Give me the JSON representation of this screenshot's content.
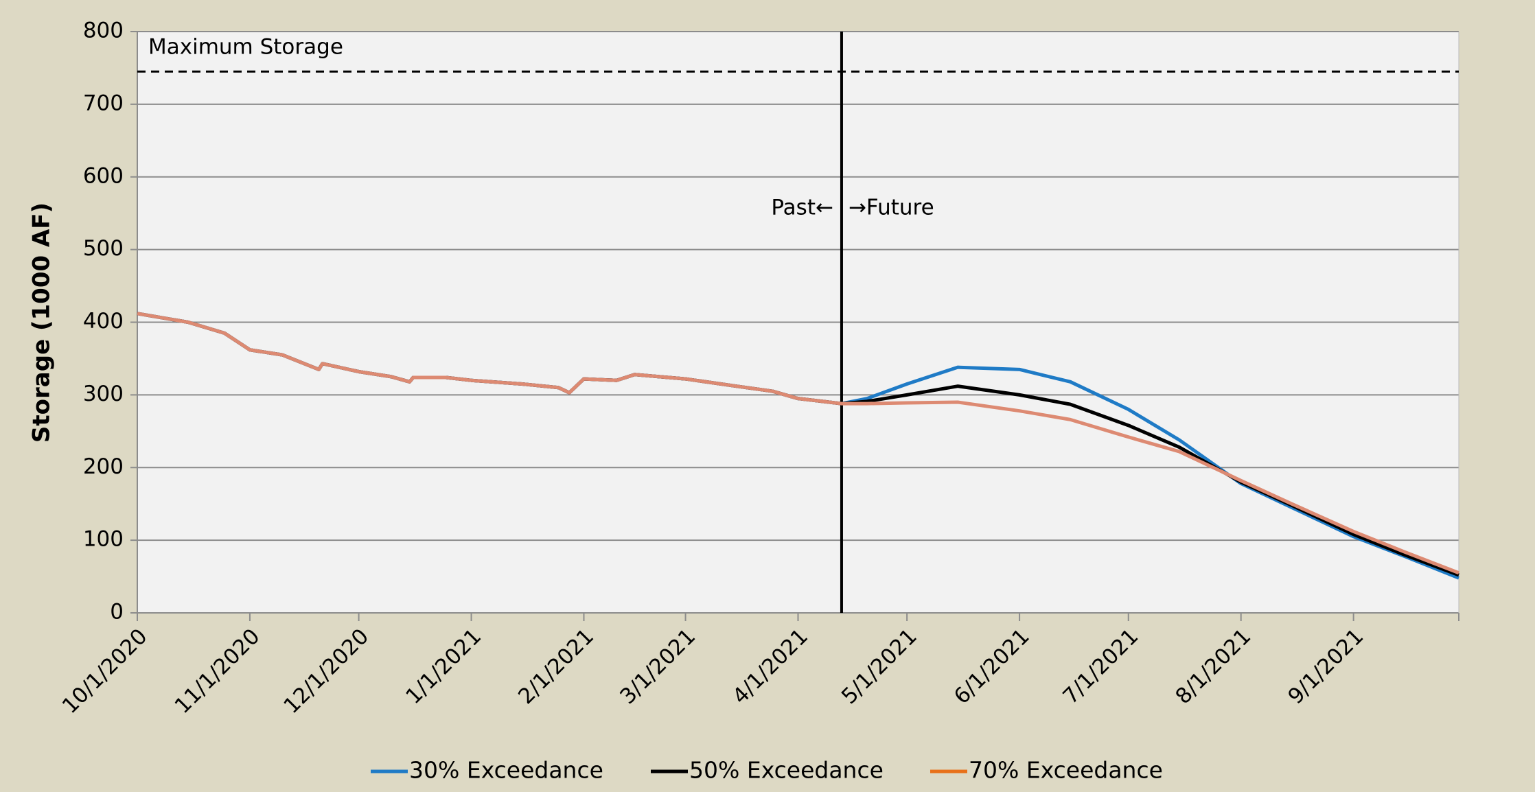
{
  "chart_data": {
    "type": "line",
    "y_label": "Storage (1000 AF)",
    "x": [
      "10/1/2020",
      "10/15/2020",
      "10/25/2020",
      "11/1/2020",
      "11/10/2020",
      "11/20/2020",
      "11/21/2020",
      "12/1/2020",
      "12/10/2020",
      "12/15/2020",
      "12/16/2020",
      "12/25/2020",
      "1/1/2021",
      "1/15/2021",
      "1/25/2021",
      "1/28/2021",
      "2/1/2021",
      "2/10/2021",
      "2/15/2021",
      "3/1/2021",
      "3/15/2021",
      "3/25/2021",
      "4/1/2021",
      "4/13/2021",
      "4/20/2021",
      "5/1/2021",
      "5/15/2021",
      "6/1/2021",
      "6/15/2021",
      "7/1/2021",
      "7/15/2021",
      "8/1/2021",
      "8/15/2021",
      "9/1/2021",
      "9/15/2021",
      "9/30/2021"
    ],
    "series": [
      {
        "name": "30% Exceedance",
        "color": "#1f7bc6",
        "values": [
          412,
          400,
          385,
          362,
          355,
          335,
          343,
          332,
          325,
          318,
          324,
          324,
          320,
          315,
          310,
          303,
          322,
          320,
          328,
          322,
          312,
          305,
          295,
          288,
          295,
          315,
          338,
          335,
          318,
          280,
          238,
          178,
          145,
          105,
          78,
          48
        ]
      },
      {
        "name": "50% Exceedance",
        "color": "#000000",
        "values": [
          412,
          400,
          385,
          362,
          355,
          335,
          343,
          332,
          325,
          318,
          324,
          324,
          320,
          315,
          310,
          303,
          322,
          320,
          328,
          322,
          312,
          305,
          295,
          288,
          291,
          300,
          312,
          300,
          287,
          258,
          228,
          180,
          148,
          108,
          80,
          52
        ]
      },
      {
        "name": "70% Exceedance",
        "color": "#dd8a72",
        "legend_color": "#e8711a",
        "values": [
          412,
          400,
          385,
          362,
          355,
          335,
          343,
          332,
          325,
          318,
          324,
          324,
          320,
          315,
          310,
          303,
          322,
          320,
          328,
          322,
          312,
          305,
          295,
          288,
          288,
          289,
          290,
          278,
          266,
          242,
          222,
          182,
          150,
          112,
          84,
          55
        ]
      }
    ],
    "xlim": [
      "10/1/2020",
      "9/30/2021"
    ],
    "xticks": [
      "10/1/2020",
      "11/1/2020",
      "12/1/2020",
      "1/1/2021",
      "2/1/2021",
      "3/1/2021",
      "4/1/2021",
      "5/1/2021",
      "6/1/2021",
      "7/1/2021",
      "8/1/2021",
      "9/1/2021"
    ],
    "ylim": [
      0,
      800
    ],
    "yticks": [
      0,
      100,
      200,
      300,
      400,
      500,
      600,
      700,
      800
    ],
    "grid": true,
    "legend": "bottom",
    "max_line": {
      "text": "Maximum Storage",
      "value": 745
    },
    "divider": {
      "x": "4/13/2021",
      "left_text": "Past←",
      "right_text": "→Future"
    }
  }
}
